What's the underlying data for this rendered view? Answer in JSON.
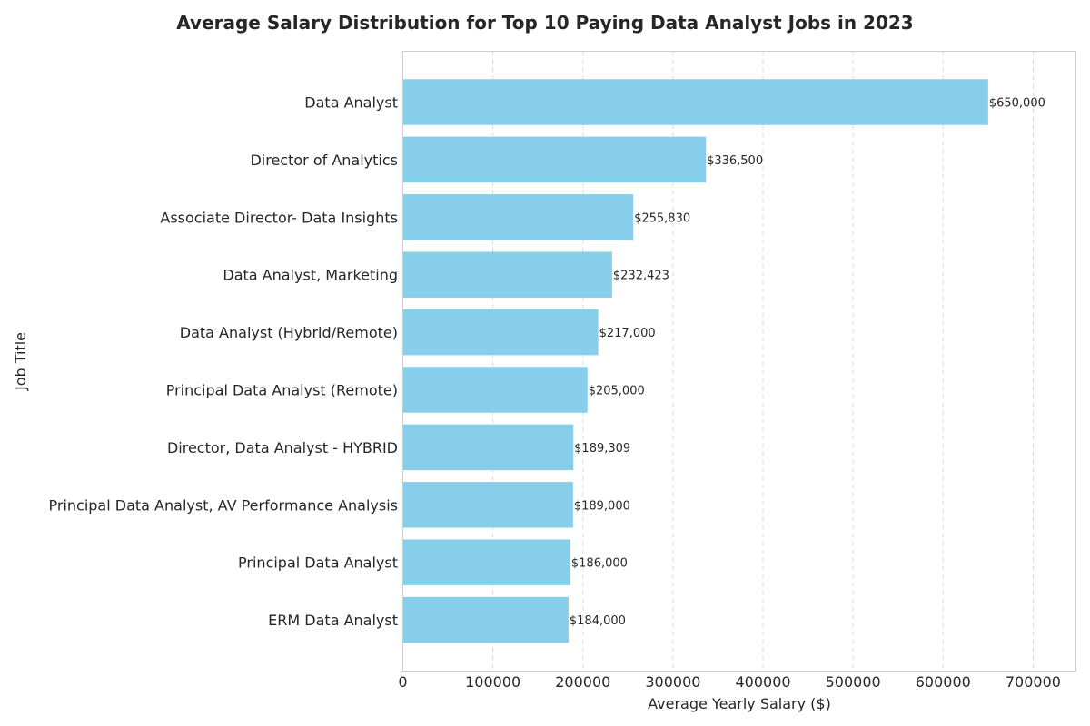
{
  "chart_data": {
    "type": "bar",
    "orientation": "horizontal",
    "title": "Average Salary Distribution for Top 10 Paying Data Analyst Jobs in 2023",
    "xlabel": "Average Yearly Salary ($)",
    "ylabel": "Job Title",
    "categories": [
      "Data Analyst",
      "Director of Analytics",
      "Associate Director- Data Insights",
      "Data Analyst, Marketing",
      "Data Analyst (Hybrid/Remote)",
      "Principal Data Analyst (Remote)",
      "Director, Data Analyst - HYBRID",
      "Principal Data Analyst, AV Performance Analysis",
      "Principal Data Analyst",
      "ERM Data Analyst"
    ],
    "values": [
      650000,
      336500,
      255830,
      232423,
      217000,
      205000,
      189309,
      189000,
      186000,
      184000
    ],
    "value_labels": [
      "$650,000",
      "$336,500",
      "$255,830",
      "$232,423",
      "$217,000",
      "$205,000",
      "$189,309",
      "$189,000",
      "$186,000",
      "$184,000"
    ],
    "xlim": [
      0,
      747500
    ],
    "xticks": [
      0,
      100000,
      200000,
      300000,
      400000,
      500000,
      600000,
      700000
    ],
    "xtick_labels": [
      "0",
      "100000",
      "200000",
      "300000",
      "400000",
      "500000",
      "600000",
      "700000"
    ],
    "grid": "x-dashed",
    "bar_color": "#87ceeb",
    "grid_color": "#d9d9d9",
    "frame_color": "#cccccc",
    "text_color": "#262626"
  }
}
